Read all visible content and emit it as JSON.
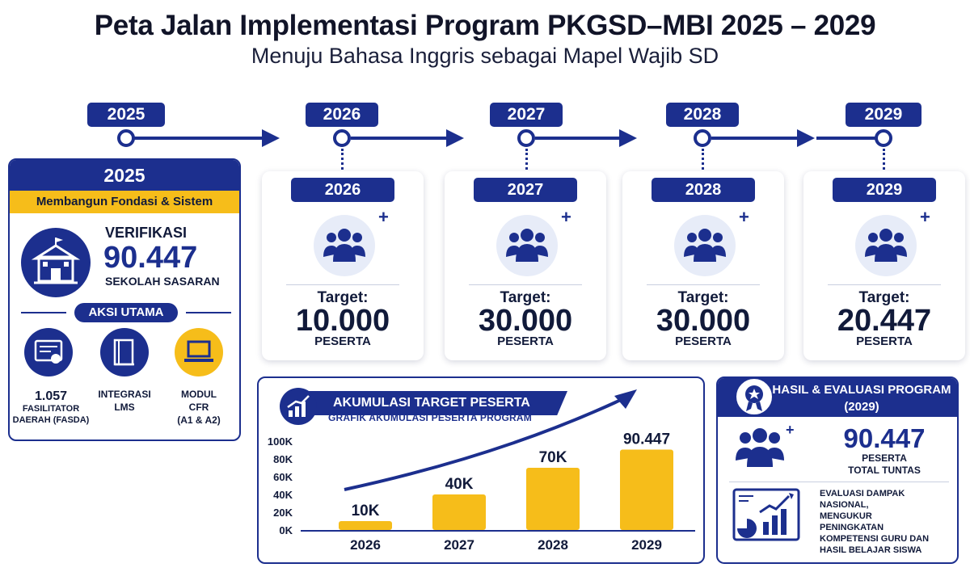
{
  "header": {
    "title": "Peta Jalan Implementasi Program PKGSD–MBI 2025 – 2029",
    "subtitle": "Menuju Bahasa Inggris sebagai Mapel Wajib SD"
  },
  "timeline": {
    "years": [
      "2025",
      "2026",
      "2027",
      "2028",
      "2029"
    ]
  },
  "phase2025": {
    "year": "2025",
    "banner": "Membangun Fondasi & Sistem",
    "verify_label": "VERIFIKASI",
    "verify_value": "90.447",
    "verify_unit": "SEKOLAH SASARAN",
    "actions_title": "AKSI UTAMA",
    "actions": [
      {
        "label_1": "1.057",
        "label_2": "FASILITATOR",
        "label_3": "DAERAH (FASDA)",
        "icon": "certificate-icon"
      },
      {
        "label_1": "INTEGRASI",
        "label_2": "LMS",
        "label_3": "",
        "icon": "book-icon"
      },
      {
        "label_1": "MODUL",
        "label_2": "CFR",
        "label_3": "(A1 & A2)",
        "icon": "laptop-icon"
      }
    ]
  },
  "targets": [
    {
      "year": "2026",
      "label": "Target:",
      "value": "10.000",
      "unit": "PESERTA"
    },
    {
      "year": "2027",
      "label": "Target:",
      "value": "30.000",
      "unit": "PESERTA"
    },
    {
      "year": "2028",
      "label": "Target:",
      "value": "30.000",
      "unit": "PESERTA"
    },
    {
      "year": "2029",
      "label": "Target:",
      "value": "20.447",
      "unit": "PESERTA"
    }
  ],
  "accumulation": {
    "title": "AKUMULASI TARGET PESERTA",
    "subtitle": "GRAFIK AKUMULASI PESERTA PROGRAM"
  },
  "chart_data": {
    "type": "bar",
    "categories": [
      "2026",
      "2027",
      "2028",
      "2029"
    ],
    "values": [
      10000,
      40000,
      70000,
      90447
    ],
    "data_labels": [
      "10K",
      "40K",
      "70K",
      "90.447"
    ],
    "ylim": [
      0,
      100000
    ],
    "yticks": [
      "0K",
      "20K",
      "40K",
      "60K",
      "80K",
      "100K"
    ],
    "title": "",
    "xlabel": "",
    "ylabel": "",
    "grid": false,
    "bar_color": "#f6bd1a",
    "accent_color": "#1c2f8e"
  },
  "result": {
    "title": "HASIL & EVALUASI PROGRAM (2029)",
    "value": "90.447",
    "value_sub_1": "PESERTA",
    "value_sub_2": "TOTAL TUNTAS",
    "eval_lines": [
      "EVALUASI DAMPAK",
      "NASIONAL,",
      "MENGUKUR",
      "PENINGKATAN",
      "KOMPETENSI GURU DAN",
      "HASIL BELAJAR SISWA"
    ]
  },
  "colors": {
    "navy": "#1c2f8e",
    "gold": "#f6bd1a"
  }
}
